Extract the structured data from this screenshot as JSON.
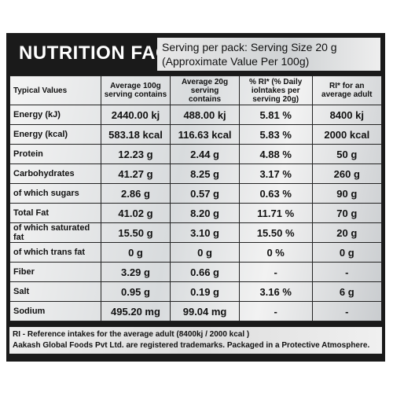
{
  "header": {
    "title": "NUTRITION FACTS",
    "serving": [
      "Serving per pack: Serving Size 20 g",
      "(Approximate Value Per 100g)"
    ]
  },
  "table": {
    "columns": [
      "Typical Values",
      "Average 100g serving contains",
      "Average 20g serving contains",
      "% RI* (% Daily iolntakes per serving 20g)",
      "RI* for an average adult"
    ],
    "rows": [
      [
        "Energy (kJ)",
        "2440.00 kj",
        "488.00 kj",
        "5.81 %",
        "8400 kj"
      ],
      [
        "Energy (kcal)",
        "583.18 kcal",
        "116.63 kcal",
        "5.83 %",
        "2000 kcal"
      ],
      [
        "Protein",
        "12.23 g",
        "2.44 g",
        "4.88 %",
        "50 g"
      ],
      [
        "Carbohydrates",
        "41.27 g",
        "8.25 g",
        "3.17 %",
        "260 g"
      ],
      [
        "of which sugars",
        "2.86 g",
        "0.57 g",
        "0.63 %",
        "90 g"
      ],
      [
        "Total Fat",
        "41.02 g",
        "8.20 g",
        "11.71 %",
        "70 g"
      ],
      [
        "of which saturated fat",
        "15.50 g",
        "3.10 g",
        "15.50 %",
        "20 g"
      ],
      [
        "of which trans fat",
        "0 g",
        "0 g",
        "0 %",
        "0 g"
      ],
      [
        "Fiber",
        "3.29 g",
        "0.66 g",
        "-",
        "-"
      ],
      [
        "Salt",
        "0.95 g",
        "0.19 g",
        "3.16 %",
        "6 g"
      ],
      [
        "Sodium",
        "495.20 mg",
        "99.04 mg",
        "-",
        "-"
      ]
    ]
  },
  "footer": [
    "RI - Reference intakes for the average adult (8400kj / 2000 kcal )",
    "Aakash Global Foods Pvt Ltd. are registered trademarks. Packaged in a Protective Atmosphere."
  ]
}
